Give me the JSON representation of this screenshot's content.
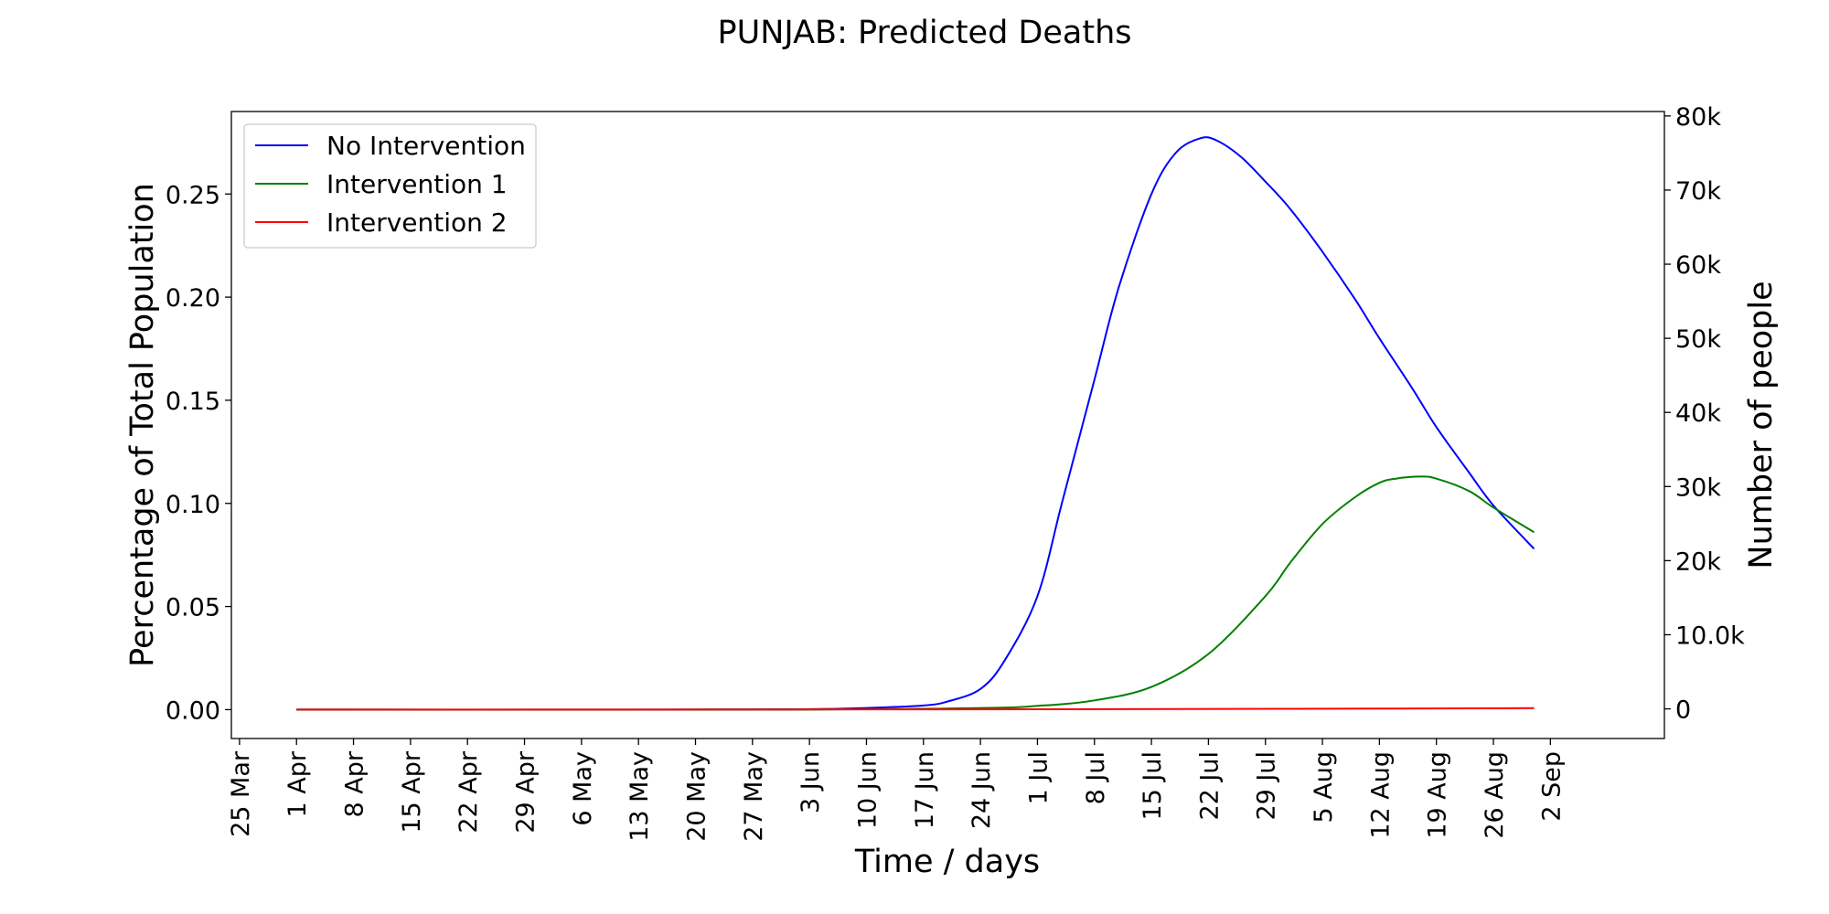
{
  "chart_data": {
    "type": "line",
    "title": "PUNJAB: Predicted Deaths",
    "xlabel": "Time / days",
    "ylabel": "Percentage of Total Population",
    "ylabel_right": "Number of people",
    "x_ticks": [
      "25 Mar",
      "1 Apr",
      "8 Apr",
      "15 Apr",
      "22 Apr",
      "29 Apr",
      "6 May",
      "13 May",
      "20 May",
      "27 May",
      "3 Jun",
      "10 Jun",
      "17 Jun",
      "24 Jun",
      "1 Jul",
      "8 Jul",
      "15 Jul",
      "22 Jul",
      "29 Jul",
      "5 Aug",
      "12 Aug",
      "19 Aug",
      "26 Aug",
      "2 Sep"
    ],
    "y_ticks": [
      "0.00",
      "0.05",
      "0.10",
      "0.15",
      "0.20",
      "0.25"
    ],
    "y_tick_values": [
      0.0,
      0.05,
      0.1,
      0.15,
      0.2,
      0.25
    ],
    "y2_ticks": [
      "0",
      "10.0k",
      "20k",
      "30k",
      "40k",
      "50k",
      "60k",
      "70k",
      "80k"
    ],
    "y2_tick_values": [
      0,
      10000,
      20000,
      30000,
      40000,
      50000,
      60000,
      70000,
      80000
    ],
    "xlim": [
      "2020-03-24",
      "2020-09-16"
    ],
    "ylim": [
      -0.014,
      0.29
    ],
    "y2lim": [
      -4000,
      80600
    ],
    "grid": false,
    "legend_position": "top-left",
    "series": [
      {
        "name": "No Intervention",
        "color": "#0000ff",
        "x": [
          "2020-04-01",
          "2020-05-01",
          "2020-06-01",
          "2020-06-10",
          "2020-06-17",
          "2020-06-20",
          "2020-06-24",
          "2020-06-27",
          "2020-07-01",
          "2020-07-04",
          "2020-07-08",
          "2020-07-11",
          "2020-07-15",
          "2020-07-18",
          "2020-07-21",
          "2020-07-23",
          "2020-07-26",
          "2020-07-29",
          "2020-08-01",
          "2020-08-05",
          "2020-08-09",
          "2020-08-12",
          "2020-08-16",
          "2020-08-19",
          "2020-08-23",
          "2020-08-26",
          "2020-08-31"
        ],
        "y": [
          0.0,
          0.0,
          0.0002,
          0.0008,
          0.002,
          0.004,
          0.01,
          0.024,
          0.055,
          0.1,
          0.16,
          0.205,
          0.25,
          0.27,
          0.277,
          0.276,
          0.268,
          0.256,
          0.243,
          0.222,
          0.199,
          0.18,
          0.156,
          0.137,
          0.115,
          0.099,
          0.078
        ]
      },
      {
        "name": "Intervention 1",
        "color": "#008000",
        "x": [
          "2020-04-01",
          "2020-06-01",
          "2020-06-24",
          "2020-07-01",
          "2020-07-08",
          "2020-07-15",
          "2020-07-22",
          "2020-07-29",
          "2020-08-01",
          "2020-08-05",
          "2020-08-09",
          "2020-08-12",
          "2020-08-14",
          "2020-08-17",
          "2020-08-19",
          "2020-08-23",
          "2020-08-26",
          "2020-08-31"
        ],
        "y": [
          0.0,
          0.0,
          0.0008,
          0.0018,
          0.0045,
          0.011,
          0.027,
          0.055,
          0.071,
          0.09,
          0.103,
          0.11,
          0.112,
          0.113,
          0.112,
          0.106,
          0.098,
          0.086
        ]
      },
      {
        "name": "Intervention 2",
        "color": "#ff0000",
        "x": [
          "2020-04-01",
          "2020-05-01",
          "2020-06-01",
          "2020-07-01",
          "2020-08-01",
          "2020-08-31"
        ],
        "y": [
          0.0,
          0.0,
          0.0001,
          0.0002,
          0.0004,
          0.0007
        ]
      }
    ]
  }
}
